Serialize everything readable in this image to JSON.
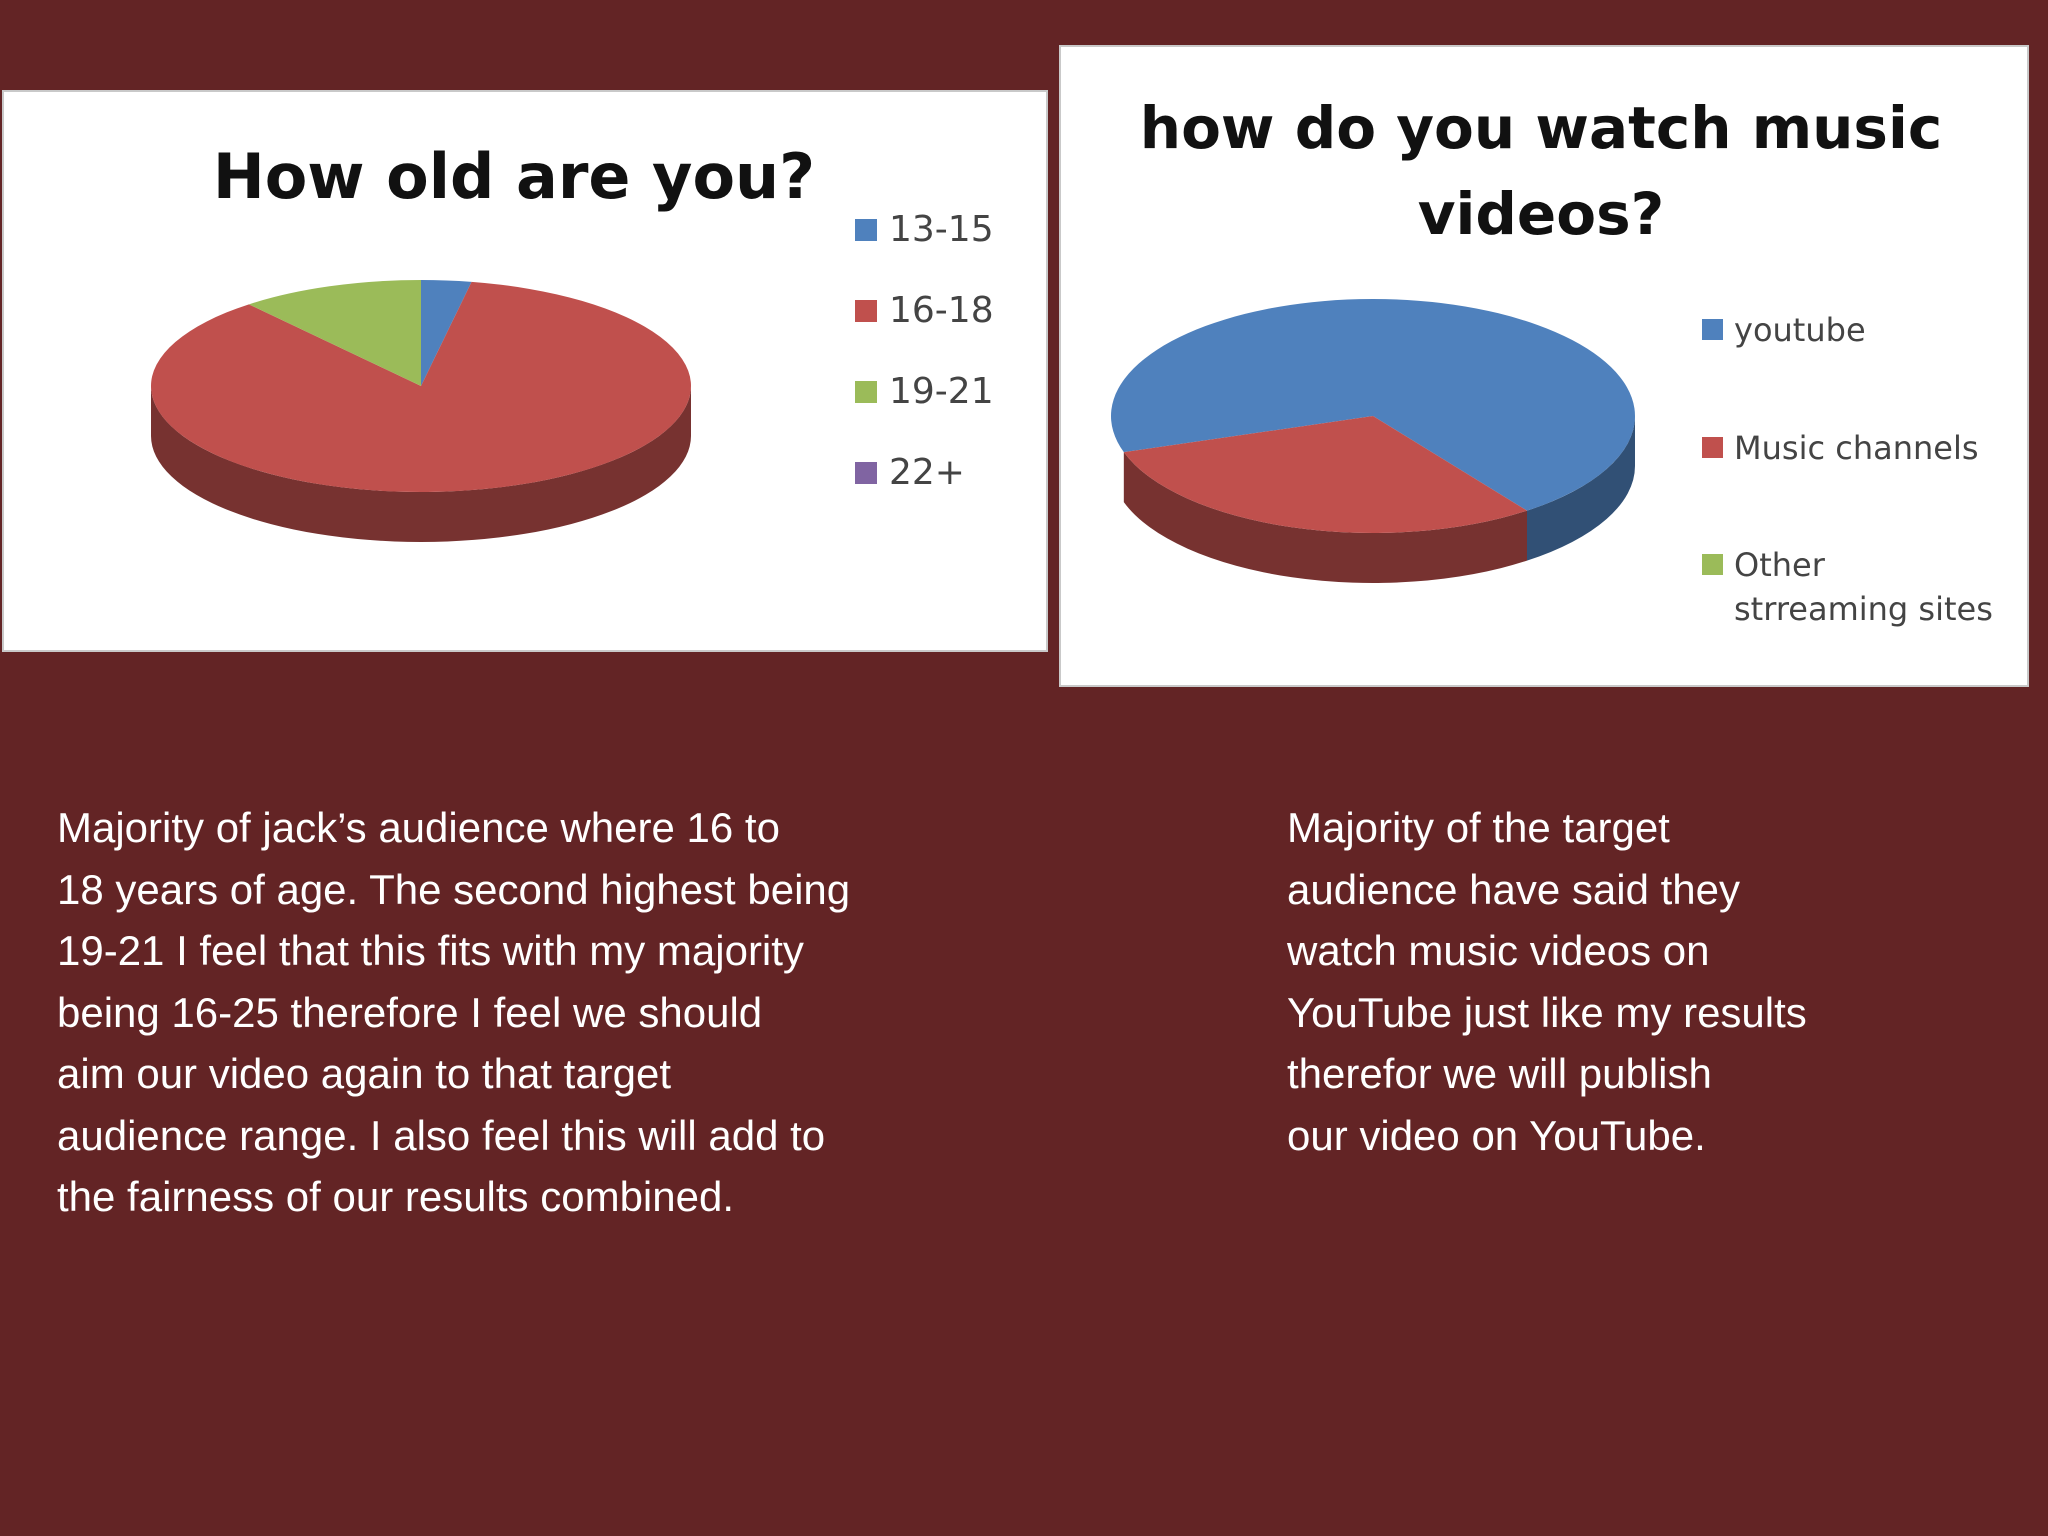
{
  "chart_data": [
    {
      "type": "pie",
      "title": "How old are you?",
      "categories": [
        "13-15",
        "16-18",
        "19-21",
        "22+"
      ],
      "values": [
        3,
        86,
        11,
        0
      ],
      "colors": [
        "#4f81bd",
        "#c0504d",
        "#9bbb59",
        "#8064a2"
      ],
      "legend": "right"
    },
    {
      "type": "pie",
      "title_lines": [
        "how do you watch music",
        "videos?"
      ],
      "categories": [
        "youtube",
        "Music channels",
        "Other strreaming sites"
      ],
      "legend_lines": [
        [
          "youtube"
        ],
        [
          "Music channels"
        ],
        [
          "Other",
          "strreaming sites"
        ]
      ],
      "values": [
        70,
        30,
        0
      ],
      "colors": [
        "#4f81bd",
        "#c0504d",
        "#9bbb59"
      ],
      "legend": "right"
    }
  ],
  "text_left_lines": [
    "Majority of jack’s audience where 16 to",
    "18 years of age. The second highest being",
    "19-21 I feel that this fits with my majority",
    "being 16-25 therefore I feel we should",
    "aim our video again to that target",
    "audience range. I also feel this will add to",
    "the fairness of our results combined."
  ],
  "text_right_lines": [
    "Majority of the target",
    "audience have said they",
    "watch music videos on",
    "YouTube just like my results",
    "therefor we will publish",
    "our video on YouTube."
  ]
}
